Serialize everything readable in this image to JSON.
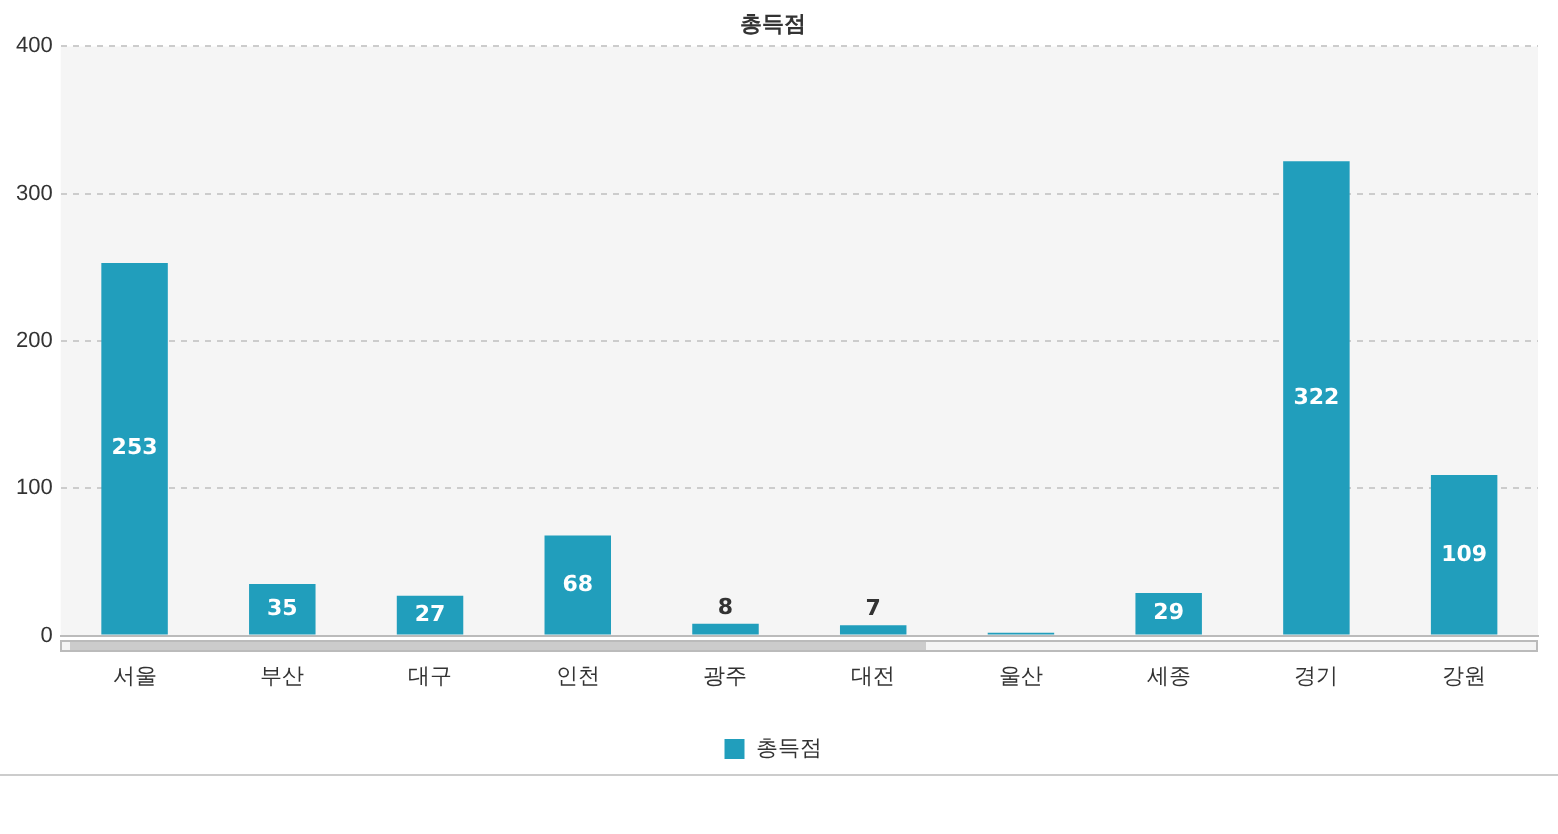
{
  "chart_data": {
    "type": "bar",
    "title": "총득점",
    "categories": [
      "서울",
      "부산",
      "대구",
      "인천",
      "광주",
      "대전",
      "울산",
      "세종",
      "경기",
      "강원"
    ],
    "series": [
      {
        "name": "총득점",
        "color": "#219ebc",
        "values": [
          253,
          35,
          27,
          68,
          8,
          7,
          2,
          29,
          322,
          109
        ],
        "value_labels": [
          "253",
          "35",
          "27",
          "68",
          "8",
          "7",
          null,
          "29",
          "322",
          "109"
        ]
      }
    ],
    "ylim": [
      0,
      400
    ],
    "yticks": [
      0,
      100,
      200,
      300,
      400
    ],
    "grid": "y",
    "legend": "bottom"
  }
}
